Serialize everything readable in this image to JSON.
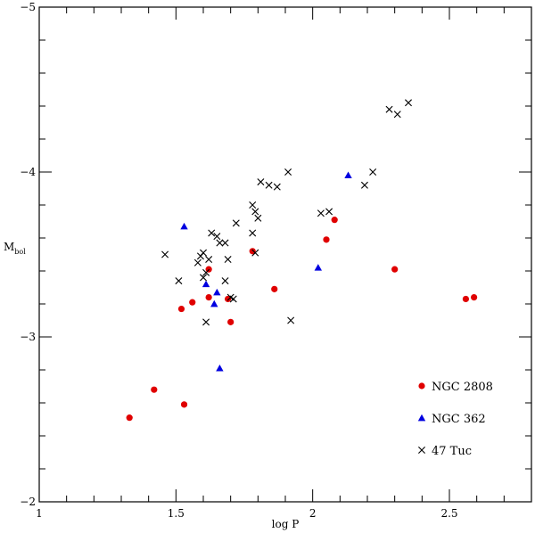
{
  "chart_data": {
    "type": "scatter",
    "xlabel": "log P",
    "ylabel_main": "M",
    "ylabel_sub": "bol",
    "xlim": [
      1,
      2.8
    ],
    "ylim": [
      -2,
      -5
    ],
    "x_ticks_major": [
      1,
      1.5,
      2,
      2.5
    ],
    "x_tick_labels": [
      "1",
      "1.5",
      "2",
      "2.5"
    ],
    "y_ticks_major": [
      -2,
      -3,
      -4,
      -5
    ],
    "y_tick_labels": [
      "−2",
      "−3",
      "−4",
      "−5"
    ],
    "legend_position": "bottom-right",
    "series": [
      {
        "name": "NGC 2808",
        "marker": "circle",
        "color": "#e00000",
        "points": [
          [
            1.33,
            -2.51
          ],
          [
            1.42,
            -2.68
          ],
          [
            1.52,
            -3.17
          ],
          [
            1.53,
            -2.59
          ],
          [
            1.56,
            -3.21
          ],
          [
            1.62,
            -3.41
          ],
          [
            1.62,
            -3.24
          ],
          [
            1.69,
            -3.23
          ],
          [
            1.7,
            -3.09
          ],
          [
            1.78,
            -3.52
          ],
          [
            1.86,
            -3.29
          ],
          [
            2.05,
            -3.59
          ],
          [
            2.08,
            -3.71
          ],
          [
            2.3,
            -3.41
          ],
          [
            2.56,
            -3.23
          ],
          [
            2.59,
            -3.24
          ]
        ]
      },
      {
        "name": "NGC 362",
        "marker": "triangle",
        "color": "#0000e0",
        "points": [
          [
            1.53,
            -3.67
          ],
          [
            1.61,
            -3.32
          ],
          [
            1.64,
            -3.2
          ],
          [
            1.65,
            -3.27
          ],
          [
            1.66,
            -2.81
          ],
          [
            2.02,
            -3.42
          ],
          [
            2.13,
            -3.98
          ]
        ]
      },
      {
        "name": "47 Tuc",
        "marker": "cross",
        "color": "#000000",
        "points": [
          [
            1.46,
            -3.5
          ],
          [
            1.51,
            -3.34
          ],
          [
            1.58,
            -3.45
          ],
          [
            1.59,
            -3.49
          ],
          [
            1.6,
            -3.51
          ],
          [
            1.6,
            -3.36
          ],
          [
            1.61,
            -3.39
          ],
          [
            1.61,
            -3.09
          ],
          [
            1.62,
            -3.47
          ],
          [
            1.63,
            -3.63
          ],
          [
            1.65,
            -3.61
          ],
          [
            1.66,
            -3.57
          ],
          [
            1.68,
            -3.57
          ],
          [
            1.68,
            -3.34
          ],
          [
            1.69,
            -3.47
          ],
          [
            1.7,
            -3.24
          ],
          [
            1.71,
            -3.23
          ],
          [
            1.72,
            -3.69
          ],
          [
            1.78,
            -3.8
          ],
          [
            1.78,
            -3.63
          ],
          [
            1.79,
            -3.76
          ],
          [
            1.79,
            -3.51
          ],
          [
            1.8,
            -3.72
          ],
          [
            1.81,
            -3.94
          ],
          [
            1.84,
            -3.92
          ],
          [
            1.87,
            -3.91
          ],
          [
            1.91,
            -4.0
          ],
          [
            1.92,
            -3.1
          ],
          [
            2.03,
            -3.75
          ],
          [
            2.06,
            -3.76
          ],
          [
            2.19,
            -3.92
          ],
          [
            2.22,
            -4.0
          ],
          [
            2.28,
            -4.38
          ],
          [
            2.31,
            -4.35
          ],
          [
            2.35,
            -4.42
          ]
        ]
      }
    ]
  }
}
